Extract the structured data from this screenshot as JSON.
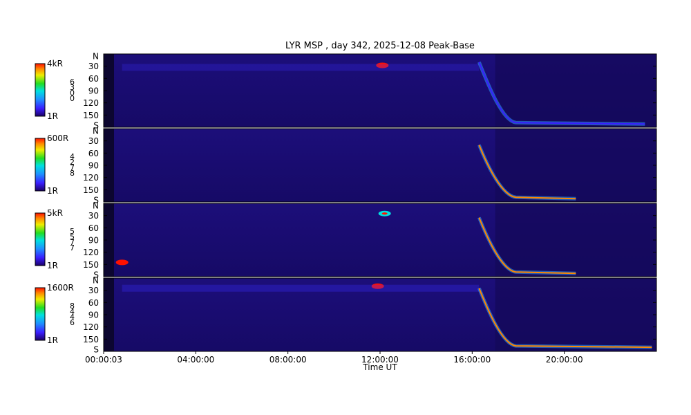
{
  "chart_data": {
    "type": "heatmap",
    "title": "LYR MSP , day 342, 2025-12-08 Peak-Base",
    "xlabel": "Time UT",
    "x_ticks": [
      "00:00:03",
      "04:00:00",
      "08:00:00",
      "12:00:00",
      "16:00:00",
      "20:00:00"
    ],
    "y_ticks": [
      "N",
      "30",
      "60",
      "90",
      "120",
      "150",
      "S"
    ],
    "y_range": [
      0,
      180
    ],
    "x_range_hours": [
      0,
      24
    ],
    "panels": [
      {
        "colorbar_max": "4kR",
        "colorbar_min": "1R",
        "channel_digits": [
          "6",
          "3",
          "0",
          "0"
        ],
        "features": [
          {
            "kind": "patch",
            "t": 12.1,
            "angle": 28,
            "level": 1.0
          },
          {
            "kind": "band",
            "t0": 0.8,
            "t1": 16.3,
            "angle": 33,
            "level": 0.25
          },
          {
            "kind": "arc",
            "t0": 16.3,
            "t1": 23.5,
            "a0": 20,
            "a1": 172,
            "level": 0.3
          }
        ]
      },
      {
        "colorbar_max": "600R",
        "colorbar_min": "1R",
        "channel_digits": [
          "4",
          "2",
          "7",
          "8"
        ],
        "features": [
          {
            "kind": "arc",
            "t0": 16.3,
            "t1": 20.5,
            "a0": 40,
            "a1": 172,
            "level": 0.95
          }
        ]
      },
      {
        "colorbar_max": "5kR",
        "colorbar_min": "1R",
        "channel_digits": [
          "5",
          "5",
          "7",
          "7"
        ],
        "features": [
          {
            "kind": "patch",
            "t": 12.2,
            "angle": 25,
            "level": 0.55
          },
          {
            "kind": "patch",
            "t": 0.8,
            "angle": 145,
            "level": 1.0
          },
          {
            "kind": "arc",
            "t0": 16.3,
            "t1": 20.5,
            "a0": 35,
            "a1": 172,
            "level": 0.95
          }
        ]
      },
      {
        "colorbar_max": "1600R",
        "colorbar_min": "1R",
        "channel_digits": [
          "8",
          "4",
          "4",
          "6"
        ],
        "features": [
          {
            "kind": "patch",
            "t": 11.9,
            "angle": 20,
            "level": 1.0
          },
          {
            "kind": "band",
            "t0": 0.8,
            "t1": 16.3,
            "angle": 25,
            "level": 0.3
          },
          {
            "kind": "arc",
            "t0": 16.3,
            "t1": 23.8,
            "a0": 25,
            "a1": 170,
            "level": 0.9
          }
        ]
      }
    ]
  }
}
